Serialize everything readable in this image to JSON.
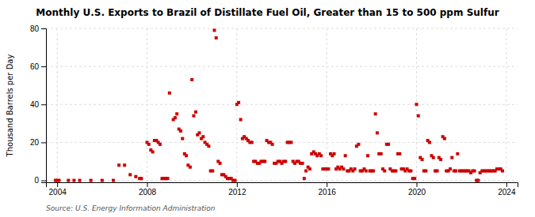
{
  "chart_data": {
    "type": "scatter",
    "title": "Monthly U.S. Exports to Brazil of Distillate Fuel Oil, Greater than 15 to 500 ppm Sulfur",
    "ylabel": "Thousand Barrels per Day",
    "annotations": [
      "Source: U.S. Energy Information Administration"
    ],
    "color": "#cc0000",
    "marker": "square",
    "grid": true,
    "xlim": [
      2003.5,
      2024.5
    ],
    "ylim": [
      -1,
      80
    ],
    "xticks": [
      2004,
      2008,
      2012,
      2016,
      2020,
      2024
    ],
    "yticks": [
      0,
      20,
      40,
      60,
      80
    ],
    "x": [
      2003.92,
      2004.0,
      2004.08,
      2004.5,
      2004.75,
      2005.0,
      2005.5,
      2006.0,
      2006.5,
      2006.75,
      2007.0,
      2007.25,
      2007.5,
      2007.67,
      2007.75,
      2008.0,
      2008.08,
      2008.17,
      2008.25,
      2008.33,
      2008.42,
      2008.5,
      2008.58,
      2008.67,
      2008.75,
      2008.83,
      2008.92,
      2009.0,
      2009.17,
      2009.25,
      2009.33,
      2009.42,
      2009.5,
      2009.58,
      2009.67,
      2009.75,
      2009.83,
      2009.92,
      2010.0,
      2010.08,
      2010.17,
      2010.25,
      2010.33,
      2010.42,
      2010.5,
      2010.58,
      2010.67,
      2010.75,
      2010.83,
      2010.92,
      2011.0,
      2011.08,
      2011.17,
      2011.25,
      2011.33,
      2011.42,
      2011.5,
      2011.58,
      2011.67,
      2011.75,
      2011.83,
      2011.92,
      2012.0,
      2012.08,
      2012.17,
      2012.25,
      2012.33,
      2012.42,
      2012.5,
      2012.58,
      2012.67,
      2012.75,
      2012.83,
      2012.92,
      2013.0,
      2013.08,
      2013.17,
      2013.25,
      2013.33,
      2013.42,
      2013.5,
      2013.58,
      2013.67,
      2013.75,
      2013.83,
      2013.92,
      2014.0,
      2014.08,
      2014.17,
      2014.25,
      2014.33,
      2014.42,
      2014.5,
      2014.58,
      2014.67,
      2014.75,
      2014.83,
      2014.92,
      2015.0,
      2015.08,
      2015.17,
      2015.25,
      2015.33,
      2015.42,
      2015.5,
      2015.58,
      2015.67,
      2015.75,
      2015.83,
      2015.92,
      2016.0,
      2016.08,
      2016.17,
      2016.25,
      2016.33,
      2016.42,
      2016.5,
      2016.58,
      2016.67,
      2016.75,
      2016.83,
      2016.92,
      2017.0,
      2017.08,
      2017.17,
      2017.25,
      2017.33,
      2017.42,
      2017.5,
      2017.58,
      2017.67,
      2017.75,
      2017.83,
      2017.92,
      2018.0,
      2018.08,
      2018.17,
      2018.25,
      2018.33,
      2018.42,
      2018.5,
      2018.58,
      2018.67,
      2018.75,
      2018.83,
      2018.92,
      2019.0,
      2019.08,
      2019.17,
      2019.25,
      2019.33,
      2019.42,
      2019.5,
      2019.58,
      2019.67,
      2019.75,
      2019.83,
      2019.92,
      2020.0,
      2020.08,
      2020.17,
      2020.25,
      2020.33,
      2020.42,
      2020.5,
      2020.58,
      2020.67,
      2020.75,
      2020.83,
      2020.92,
      2021.0,
      2021.08,
      2021.17,
      2021.25,
      2021.33,
      2021.42,
      2021.5,
      2021.58,
      2021.67,
      2021.75,
      2021.83,
      2021.92,
      2022.0,
      2022.08,
      2022.17,
      2022.25,
      2022.33,
      2022.42,
      2022.5,
      2022.58,
      2022.67,
      2022.75,
      2022.83,
      2022.92,
      2023.0,
      2023.08,
      2023.17,
      2023.25,
      2023.33,
      2023.42,
      2023.5,
      2023.58,
      2023.67,
      2023.75,
      2023.83
    ],
    "values": [
      0,
      0,
      0,
      0,
      0,
      0,
      0,
      0,
      0,
      8,
      8,
      3,
      2,
      1,
      1,
      20,
      19,
      16,
      15,
      21,
      21,
      20,
      19,
      1,
      1,
      1,
      1,
      46,
      32,
      33,
      35,
      27,
      26,
      22,
      14,
      13,
      8,
      7,
      53,
      34,
      36,
      24,
      25,
      22,
      23,
      20,
      19,
      18,
      5,
      5,
      79,
      75,
      10,
      9,
      3,
      3,
      2,
      1,
      1,
      1,
      0,
      0,
      40,
      41,
      32,
      22,
      23,
      22,
      21,
      20,
      20,
      10,
      10,
      9,
      9,
      10,
      10,
      10,
      21,
      20,
      20,
      19,
      9,
      9,
      10,
      10,
      9,
      10,
      10,
      20,
      20,
      20,
      10,
      9,
      10,
      10,
      9,
      9,
      1,
      5,
      7,
      6,
      14,
      15,
      14,
      13,
      14,
      13,
      6,
      6,
      6,
      6,
      14,
      13,
      14,
      6,
      7,
      6,
      7,
      6,
      13,
      5,
      5,
      6,
      5,
      6,
      18,
      19,
      5,
      5,
      6,
      5,
      13,
      5,
      5,
      5,
      35,
      25,
      14,
      14,
      6,
      5,
      19,
      19,
      6,
      5,
      5,
      5,
      14,
      14,
      6,
      6,
      5,
      6,
      5,
      5,
      1,
      1,
      40,
      34,
      12,
      11,
      5,
      5,
      21,
      20,
      13,
      12,
      5,
      5,
      12,
      11,
      23,
      22,
      5,
      5,
      6,
      12,
      5,
      5,
      14,
      5,
      5,
      5,
      5,
      5,
      5,
      4,
      5,
      5,
      0,
      0,
      4,
      5,
      5,
      5,
      5,
      5,
      5,
      5,
      5,
      6,
      6,
      6,
      5
    ]
  }
}
